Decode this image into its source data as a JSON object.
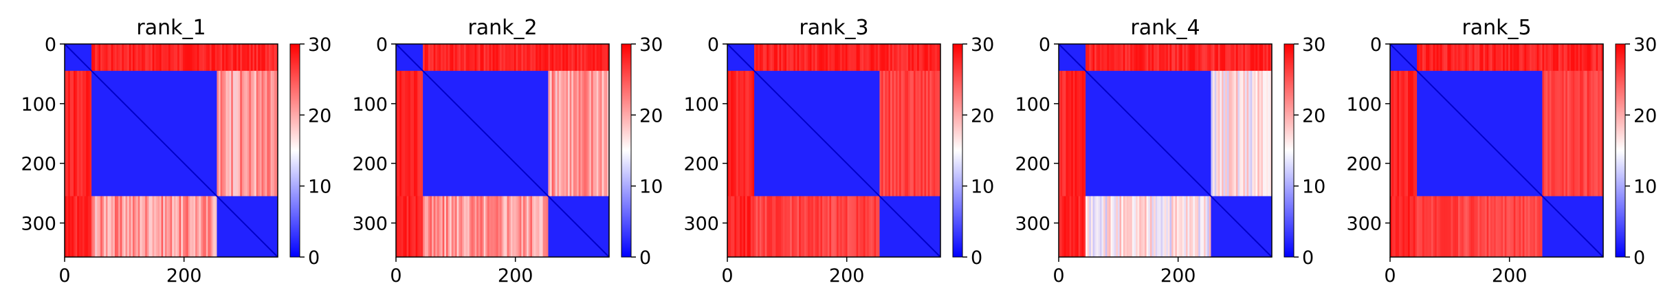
{
  "chart_data": {
    "type": "heatmap",
    "colormap": "bwr",
    "colors": {
      "low": "#0000ff",
      "mid": "#ffffff",
      "high": "#ff0000"
    },
    "vmin": 0,
    "vmax": 30,
    "n_residues": 357,
    "x_ticks": [
      0,
      200
    ],
    "y_ticks": [
      0,
      100,
      200,
      300
    ],
    "colorbar_ticks": [
      0,
      10,
      20,
      30
    ],
    "domains": [
      [
        0,
        45
      ],
      [
        45,
        255
      ],
      [
        255,
        357
      ]
    ],
    "panels": [
      {
        "title": "rank_1",
        "inter_domain_distance": {
          "d1_d2": 28,
          "d1_d3": 28,
          "d2_d3": 21
        }
      },
      {
        "title": "rank_2",
        "inter_domain_distance": {
          "d1_d2": 28,
          "d1_d3": 28,
          "d2_d3": 21
        }
      },
      {
        "title": "rank_3",
        "inter_domain_distance": {
          "d1_d2": 28,
          "d1_d3": 28,
          "d2_d3": 26
        }
      },
      {
        "title": "rank_4",
        "inter_domain_distance": {
          "d1_d2": 28,
          "d1_d3": 28,
          "d2_d3": 16
        }
      },
      {
        "title": "rank_5",
        "inter_domain_distance": {
          "d1_d2": 28,
          "d1_d3": 28,
          "d2_d3": 26
        }
      }
    ]
  }
}
